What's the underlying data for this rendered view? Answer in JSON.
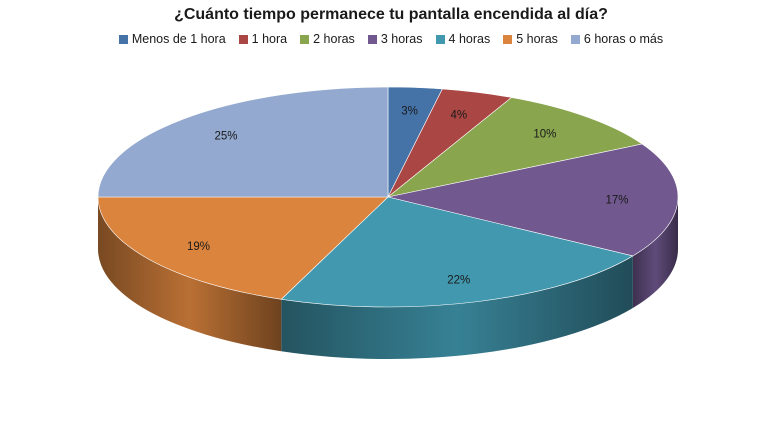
{
  "chart_data": {
    "type": "pie",
    "title": "¿Cuánto tiempo permanece tu pantalla encendida al día?",
    "legend_position": "top",
    "slices": [
      {
        "label": "Menos de 1 hora",
        "value": 3,
        "value_label": "3%",
        "color": "#4572A7"
      },
      {
        "label": "1 hora",
        "value": 4,
        "value_label": "4%",
        "color": "#AA4643"
      },
      {
        "label": "2 horas",
        "value": 10,
        "value_label": "10%",
        "color": "#89A54E"
      },
      {
        "label": "3 horas",
        "value": 17,
        "value_label": "17%",
        "color": "#71588F"
      },
      {
        "label": "4 horas",
        "value": 22,
        "value_label": "22%",
        "color": "#4198AF"
      },
      {
        "label": "5 horas",
        "value": 19,
        "value_label": "19%",
        "color": "#DB843D"
      },
      {
        "label": "6 horas o más",
        "value": 25,
        "value_label": "25%",
        "color": "#93A9CF"
      }
    ]
  }
}
